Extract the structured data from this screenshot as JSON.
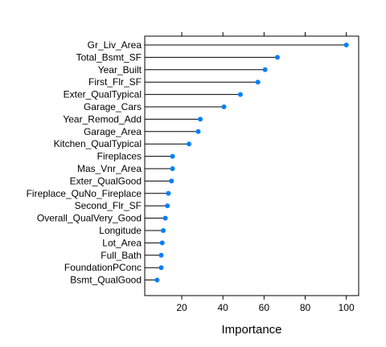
{
  "chart_data": {
    "type": "scatter",
    "style": "dot-plot with stems (lollipop), horizontal",
    "title": "",
    "xlabel": "Importance",
    "ylabel": "",
    "xlim": [
      2,
      106
    ],
    "xticks": [
      20,
      40,
      60,
      80,
      100
    ],
    "grid": false,
    "legend": "none",
    "colors": {
      "point": "#0080ff",
      "stem": "#000000",
      "frame": "#000000"
    },
    "categories": [
      "Gr_Liv_Area",
      "Total_Bsmt_SF",
      "Year_Built",
      "First_Flr_SF",
      "Exter_QualTypical",
      "Garage_Cars",
      "Year_Remod_Add",
      "Garage_Area",
      "Kitchen_QualTypical",
      "Fireplaces",
      "Mas_Vnr_Area",
      "Exter_QualGood",
      "Fireplace_QuNo_Fireplace",
      "Second_Flr_SF",
      "Overall_QualVery_Good",
      "Longitude",
      "Lot_Area",
      "Full_Bath",
      "FoundationPConc",
      "Bsmt_QualGood"
    ],
    "values": [
      100,
      66.5,
      60.5,
      57,
      48.5,
      40.5,
      29,
      28,
      23.5,
      15.5,
      15.5,
      15,
      13.5,
      13,
      12,
      11,
      10.5,
      10,
      10,
      8
    ]
  }
}
